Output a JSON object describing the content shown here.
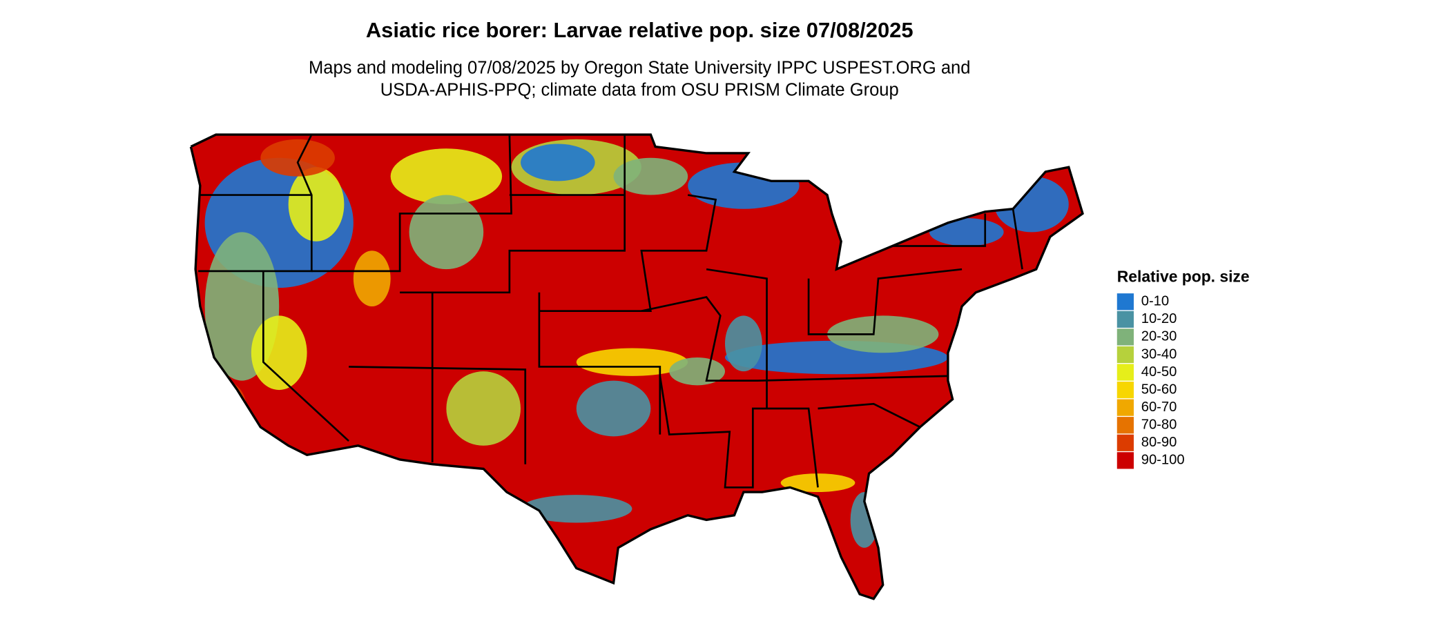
{
  "map": {
    "title": "Asiatic rice borer: Larvae relative pop. size 07/08/2025",
    "subtitle": [
      "Maps and modeling 07/08/2025 by Oregon State University IPPC USPEST.ORG and",
      "USDA-APHIS-PPQ; climate data from OSU PRISM Climate Group"
    ],
    "legend": {
      "title": "Relative pop. size",
      "items": [
        {
          "label": "0-10",
          "color": "#1f78d1"
        },
        {
          "label": "10-20",
          "color": "#4a92a3"
        },
        {
          "label": "20-30",
          "color": "#7fb27a"
        },
        {
          "label": "30-40",
          "color": "#b6d13c"
        },
        {
          "label": "40-50",
          "color": "#e6ee1a"
        },
        {
          "label": "50-60",
          "color": "#f7d600"
        },
        {
          "label": "60-70",
          "color": "#f0a800"
        },
        {
          "label": "70-80",
          "color": "#e67300"
        },
        {
          "label": "80-90",
          "color": "#dc3c00"
        },
        {
          "label": "90-100",
          "color": "#cc0000"
        }
      ]
    }
  }
}
